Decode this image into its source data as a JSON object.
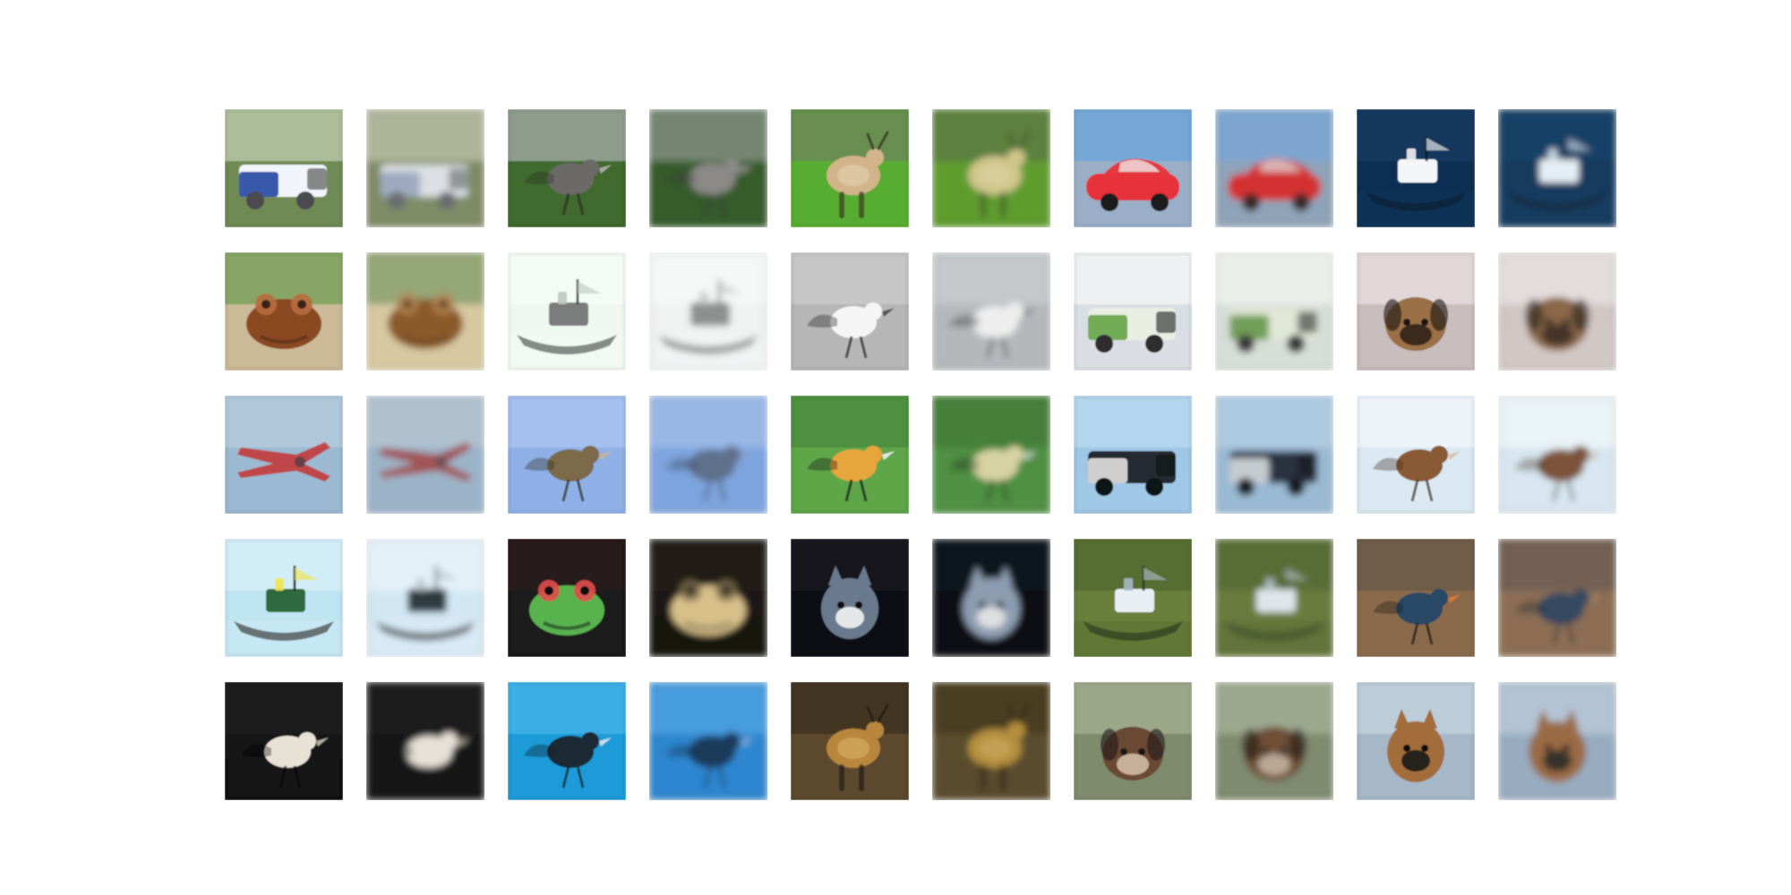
{
  "grid": {
    "rows": 5,
    "cols": 10,
    "tiles": [
      {
        "kind": "original",
        "subject": "truck",
        "colors": {
          "bg": "#6f8a55",
          "sky": "#b9c6a6",
          "main": "#f1f5fb",
          "accent": "#2d4fa6",
          "dark": "#4b4c4f"
        }
      },
      {
        "kind": "reconstruction",
        "subject": "truck",
        "colors": {
          "bg": "#7f8b66",
          "sky": "#b7bca2",
          "main": "#dcdfe3",
          "accent": "#9aa7bd",
          "dark": "#6a6d6f"
        }
      },
      {
        "kind": "original",
        "subject": "bird",
        "colors": {
          "bg": "#3f6a2e",
          "sky": "#9ca59b",
          "main": "#6c6a67",
          "accent": "#b6b3ae",
          "dark": "#2b2a29"
        }
      },
      {
        "kind": "reconstruction",
        "subject": "bird",
        "colors": {
          "bg": "#365b2b",
          "sky": "#7f8d7e",
          "main": "#8b8a86",
          "accent": "#a7a6a2",
          "dark": "#3b3a39"
        }
      },
      {
        "kind": "original",
        "subject": "deer",
        "colors": {
          "bg": "#58ad31",
          "sky": "#6a8a55",
          "main": "#d2b48a",
          "accent": "#f3e6c8",
          "dark": "#3b2f25"
        }
      },
      {
        "kind": "reconstruction",
        "subject": "deer",
        "colors": {
          "bg": "#5f9c2f",
          "sky": "#5b7b3e",
          "main": "#cfc58b",
          "accent": "#e6e0b5",
          "dark": "#3c4a2a"
        }
      },
      {
        "kind": "original",
        "subject": "car",
        "colors": {
          "bg": "#9aaec6",
          "sky": "#6fa6d8",
          "main": "#e7323a",
          "accent": "#f2f2f2",
          "dark": "#1c1c1d"
        }
      },
      {
        "kind": "reconstruction",
        "subject": "car",
        "colors": {
          "bg": "#8fa3b8",
          "sky": "#7aa6d3",
          "main": "#d43232",
          "accent": "#e0dcdc",
          "dark": "#3b2a2a"
        }
      },
      {
        "kind": "original",
        "subject": "ship",
        "colors": {
          "bg": "#0f2f52",
          "sky": "#163b62",
          "main": "#f3f6f9",
          "accent": "#f1f1f1",
          "dark": "#0b1b2b"
        }
      },
      {
        "kind": "reconstruction",
        "subject": "ship",
        "colors": {
          "bg": "#163a5d",
          "sky": "#1a4266",
          "main": "#e6eef5",
          "accent": "#d9e4ee",
          "dark": "#0e2133"
        }
      },
      {
        "kind": "original",
        "subject": "frog",
        "colors": {
          "bg": "#cbb997",
          "sky": "#7ba25c",
          "main": "#8b4a22",
          "accent": "#b86d3f",
          "dark": "#3b2416"
        }
      },
      {
        "kind": "reconstruction",
        "subject": "frog",
        "colors": {
          "bg": "#d7c8a0",
          "sky": "#8aa070",
          "main": "#8b5a2b",
          "accent": "#b38350",
          "dark": "#4a3622"
        }
      },
      {
        "kind": "original",
        "subject": "ship",
        "colors": {
          "bg": "#eef7f0",
          "sky": "#f5fbf7",
          "main": "#7a7d7b",
          "accent": "#bfc7c2",
          "dark": "#3a3c3b"
        }
      },
      {
        "kind": "reconstruction",
        "subject": "ship",
        "colors": {
          "bg": "#f0f2f1",
          "sky": "#f7f8f8",
          "main": "#8c8f8e",
          "accent": "#c4c8c6",
          "dark": "#5b5e5d"
        }
      },
      {
        "kind": "original",
        "subject": "bird",
        "colors": {
          "bg": "#b6b6b6",
          "sky": "#c9c9c9",
          "main": "#f5f5f5",
          "accent": "#4b4b4b",
          "dark": "#1b1b1b"
        }
      },
      {
        "kind": "reconstruction",
        "subject": "bird",
        "colors": {
          "bg": "#b5b8bb",
          "sky": "#c7cacc",
          "main": "#eeeeee",
          "accent": "#6a6a6a",
          "dark": "#2b2b2b"
        }
      },
      {
        "kind": "original",
        "subject": "truck",
        "colors": {
          "bg": "#d9dee3",
          "sky": "#f2f3f4",
          "main": "#e9ede2",
          "accent": "#6aa84f",
          "dark": "#2d2d2d"
        }
      },
      {
        "kind": "reconstruction",
        "subject": "truck",
        "colors": {
          "bg": "#d7ddd7",
          "sky": "#eef2ef",
          "main": "#e0e7d5",
          "accent": "#6b9a52",
          "dark": "#3b3b3b"
        }
      },
      {
        "kind": "original",
        "subject": "dog",
        "colors": {
          "bg": "#c8bdbc",
          "sky": "#e5dcdd",
          "main": "#9b6f46",
          "accent": "#2a1d17",
          "dark": "#1a1412"
        }
      },
      {
        "kind": "reconstruction",
        "subject": "dog",
        "colors": {
          "bg": "#d0c6c4",
          "sky": "#e6dfdf",
          "main": "#8a6748",
          "accent": "#3b2c25",
          "dark": "#2a1f1b"
        }
      },
      {
        "kind": "original",
        "subject": "airplane",
        "colors": {
          "bg": "#9bb9d1",
          "sky": "#b3c9db",
          "main": "#c43a3a",
          "accent": "#eae6e6",
          "dark": "#2c3b46"
        }
      },
      {
        "kind": "reconstruction",
        "subject": "airplane",
        "colors": {
          "bg": "#9bb3c8",
          "sky": "#b3c3d0",
          "main": "#a24a48",
          "accent": "#d8d2d2",
          "dark": "#3c4a55"
        }
      },
      {
        "kind": "original",
        "subject": "bird",
        "colors": {
          "bg": "#8fb0e6",
          "sky": "#a9c2ee",
          "main": "#7b6b4b",
          "accent": "#c7b389",
          "dark": "#2a241b"
        }
      },
      {
        "kind": "reconstruction",
        "subject": "bird",
        "colors": {
          "bg": "#7ea4de",
          "sky": "#9dbbe8",
          "main": "#5f6f8a",
          "accent": "#8fa0bb",
          "dark": "#2f3a4a"
        }
      },
      {
        "kind": "original",
        "subject": "bird",
        "colors": {
          "bg": "#5ea64a",
          "sky": "#4d8c3d",
          "main": "#e7a53d",
          "accent": "#f2f2f2",
          "dark": "#111111"
        }
      },
      {
        "kind": "reconstruction",
        "subject": "bird",
        "colors": {
          "bg": "#4f9042",
          "sky": "#427c37",
          "main": "#d7d2a1",
          "accent": "#f0f0f0",
          "dark": "#1c2a1b"
        }
      },
      {
        "kind": "original",
        "subject": "truck",
        "colors": {
          "bg": "#9ec6e6",
          "sky": "#b7d7ef",
          "main": "#262a30",
          "accent": "#d8d8d8",
          "dark": "#0f1216"
        }
      },
      {
        "kind": "reconstruction",
        "subject": "truck",
        "colors": {
          "bg": "#9ab9d3",
          "sky": "#b1cce2",
          "main": "#2c3340",
          "accent": "#cfd4d8",
          "dark": "#171b22"
        }
      },
      {
        "kind": "original",
        "subject": "bird",
        "colors": {
          "bg": "#d9e8f1",
          "sky": "#eef5fa",
          "main": "#8a5a36",
          "accent": "#d9c0a2",
          "dark": "#3b2a1f"
        }
      },
      {
        "kind": "reconstruction",
        "subject": "bird",
        "colors": {
          "bg": "#d7e6ef",
          "sky": "#edf4f8",
          "main": "#7c523a",
          "accent": "#c9b09a",
          "dark": "#3a2a20"
        }
      },
      {
        "kind": "original",
        "subject": "ship",
        "colors": {
          "bg": "#bfe4f1",
          "sky": "#d4eef8",
          "main": "#2f6a3c",
          "accent": "#f1e34b",
          "dark": "#1c1c1c"
        }
      },
      {
        "kind": "reconstruction",
        "subject": "ship",
        "colors": {
          "bg": "#d2e7f3",
          "sky": "#e6f2f9",
          "main": "#2d3b40",
          "accent": "#b7c4ca",
          "dark": "#151b1f"
        }
      },
      {
        "kind": "original",
        "subject": "frog",
        "colors": {
          "bg": "#1b1b1b",
          "sky": "#2a1a1a",
          "main": "#58b24d",
          "accent": "#e14b4b",
          "dark": "#0d0d0d"
        }
      },
      {
        "kind": "reconstruction",
        "subject": "frog",
        "colors": {
          "bg": "#1a1712",
          "sky": "#231e17",
          "main": "#d7c08a",
          "accent": "#7a6b4b",
          "dark": "#0f0e0c"
        }
      },
      {
        "kind": "original",
        "subject": "cat",
        "colors": {
          "bg": "#0f1114",
          "sky": "#151a20",
          "main": "#6b7a8e",
          "accent": "#f2f2f2",
          "dark": "#070809"
        }
      },
      {
        "kind": "reconstruction",
        "subject": "cat",
        "colors": {
          "bg": "#0c0f13",
          "sky": "#131820",
          "main": "#8d9db1",
          "accent": "#e7e7e7",
          "dark": "#050608"
        }
      },
      {
        "kind": "original",
        "subject": "boat",
        "colors": {
          "bg": "#6b7f3b",
          "sky": "#526b2f",
          "main": "#e7eef4",
          "accent": "#a9b9c6",
          "dark": "#2d3a1f"
        }
      },
      {
        "kind": "reconstruction",
        "subject": "boat",
        "colors": {
          "bg": "#6a7c3e",
          "sky": "#556b33",
          "main": "#dfe6ea",
          "accent": "#b4c1c9",
          "dark": "#3a4a2a"
        }
      },
      {
        "kind": "original",
        "subject": "bird",
        "colors": {
          "bg": "#8a6b4b",
          "sky": "#6b5a4a",
          "main": "#2a4a66",
          "accent": "#e07a2f",
          "dark": "#1a1a1a"
        }
      },
      {
        "kind": "reconstruction",
        "subject": "bird",
        "colors": {
          "bg": "#8d6e54",
          "sky": "#6e5f52",
          "main": "#344a60",
          "accent": "#a98a6a",
          "dark": "#20242a"
        }
      },
      {
        "kind": "original",
        "subject": "bird",
        "colors": {
          "bg": "#131313",
          "sky": "#1e1e1e",
          "main": "#e8e2d6",
          "accent": "#bfb7a8",
          "dark": "#0b0b0b"
        }
      },
      {
        "kind": "reconstruction",
        "subject": "bird",
        "colors": {
          "bg": "#151515",
          "sky": "#1f1f1f",
          "main": "#e6e1d8",
          "accent": "#c7c0b3",
          "dark": "#0d0d0d"
        }
      },
      {
        "kind": "original",
        "subject": "bird",
        "colors": {
          "bg": "#1e9bd8",
          "sky": "#3fb3e8",
          "main": "#1b2b36",
          "accent": "#d9e6ee",
          "dark": "#0f1a22"
        }
      },
      {
        "kind": "reconstruction",
        "subject": "bird",
        "colors": {
          "bg": "#2f86cf",
          "sky": "#4ba0e0",
          "main": "#1e3a5a",
          "accent": "#9fc2e3",
          "dark": "#12263a"
        }
      },
      {
        "kind": "original",
        "subject": "deer",
        "colors": {
          "bg": "#5b4a2e",
          "sky": "#3f3322",
          "main": "#b8873c",
          "accent": "#f2d08a",
          "dark": "#241b12"
        }
      },
      {
        "kind": "reconstruction",
        "subject": "deer",
        "colors": {
          "bg": "#5a4d2d",
          "sky": "#463a23",
          "main": "#b38e3d",
          "accent": "#e2c37a",
          "dark": "#2a2114"
        }
      },
      {
        "kind": "original",
        "subject": "dog",
        "colors": {
          "bg": "#7e8b6d",
          "sky": "#a1ab8f",
          "main": "#6b4a34",
          "accent": "#d7c2ad",
          "dark": "#1e1814"
        }
      },
      {
        "kind": "reconstruction",
        "subject": "dog",
        "colors": {
          "bg": "#7f8a6e",
          "sky": "#a2ab93",
          "main": "#6f4f38",
          "accent": "#c8b7a4",
          "dark": "#231b16"
        }
      },
      {
        "kind": "original",
        "subject": "cat",
        "colors": {
          "bg": "#a6b8c7",
          "sky": "#bfcfdb",
          "main": "#a26d3a",
          "accent": "#1a1a1a",
          "dark": "#0f0f0f"
        }
      },
      {
        "kind": "reconstruction",
        "subject": "cat",
        "colors": {
          "bg": "#98acc0",
          "sky": "#b6c7d6",
          "main": "#9a6b44",
          "accent": "#2a2a2a",
          "dark": "#141414"
        }
      }
    ]
  }
}
